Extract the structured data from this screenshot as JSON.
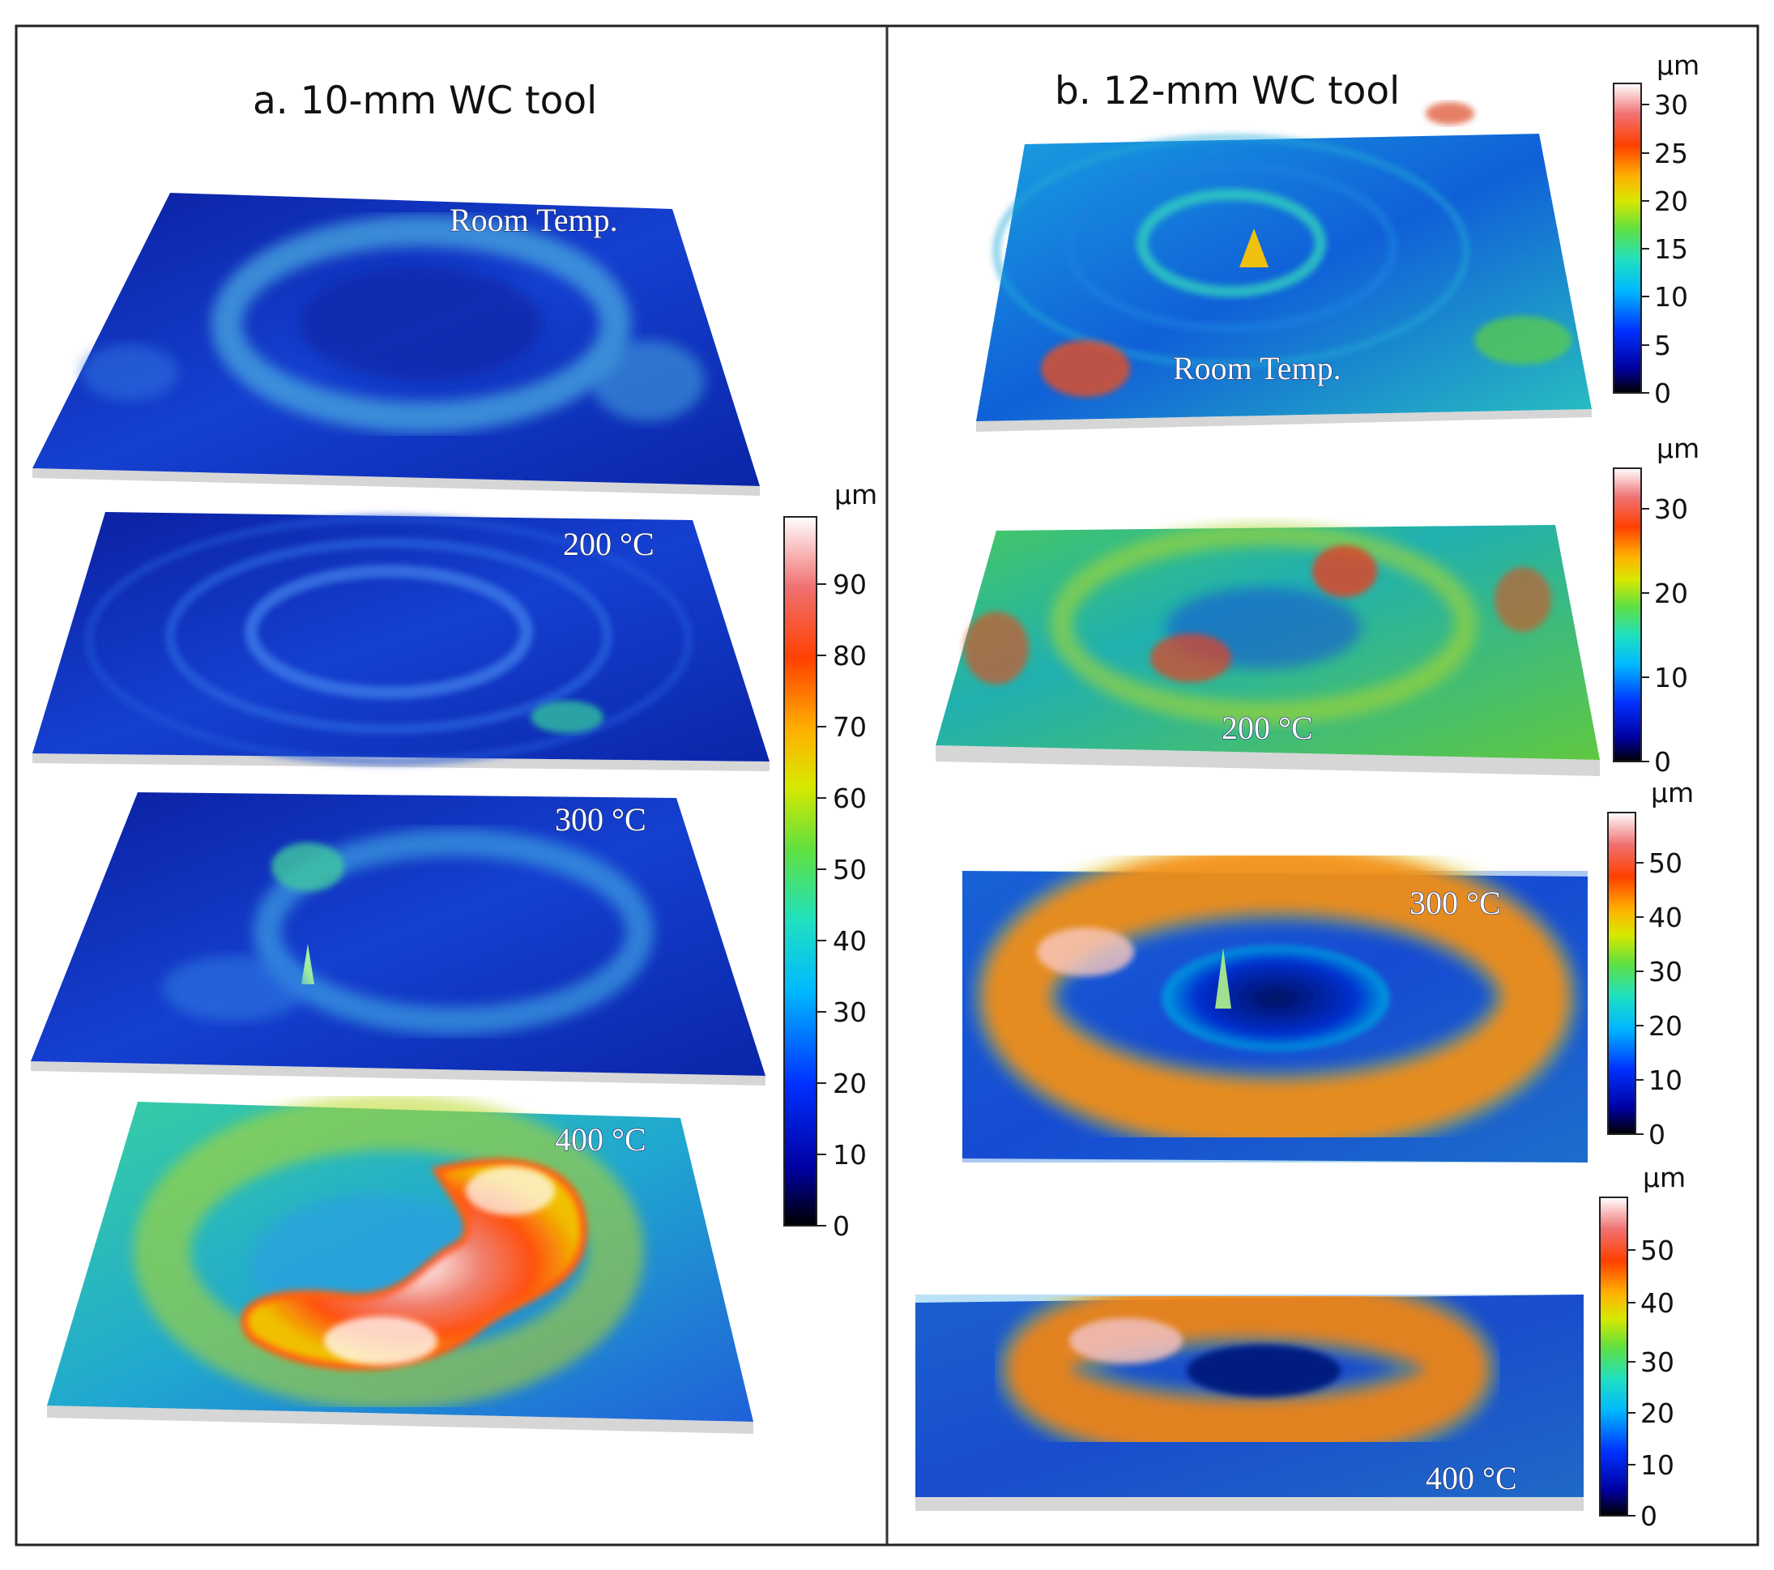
{
  "panels": [
    {
      "title": "a. 10-mm WC tool",
      "surfaces": [
        {
          "label": "Room Temp.",
          "scheme": "blue-low"
        },
        {
          "label": "200 °C",
          "scheme": "blue-rings"
        },
        {
          "label": "300 °C",
          "scheme": "blue-ring-mid"
        },
        {
          "label": "400 °C",
          "scheme": "hot-ring"
        }
      ],
      "colorbars": [
        {
          "unit": "µm",
          "ticks": [
            "0",
            "10",
            "20",
            "30",
            "40",
            "50",
            "60",
            "70",
            "80",
            "90"
          ]
        }
      ]
    },
    {
      "title": "b. 12-mm WC tool",
      "surfaces": [
        {
          "label": "Room Temp.",
          "scheme": "cyan-rings"
        },
        {
          "label": "200 °C",
          "scheme": "green-rough"
        },
        {
          "label": "300 °C",
          "scheme": "hot-ring"
        },
        {
          "label": "400 °C",
          "scheme": "hot-ring"
        }
      ],
      "colorbars": [
        {
          "unit": "µm",
          "ticks": [
            "0",
            "5",
            "10",
            "15",
            "20",
            "25",
            "30"
          ]
        },
        {
          "unit": "µm",
          "ticks": [
            "0",
            "10",
            "20",
            "30"
          ]
        },
        {
          "unit": "µm",
          "ticks": [
            "0",
            "10",
            "20",
            "30",
            "40",
            "50"
          ]
        },
        {
          "unit": "µm",
          "ticks": [
            "0",
            "10",
            "20",
            "30",
            "40",
            "50"
          ]
        }
      ]
    }
  ],
  "colors": {
    "frame": "#222222",
    "divider": "#333333",
    "base": "#d9d9d9"
  }
}
